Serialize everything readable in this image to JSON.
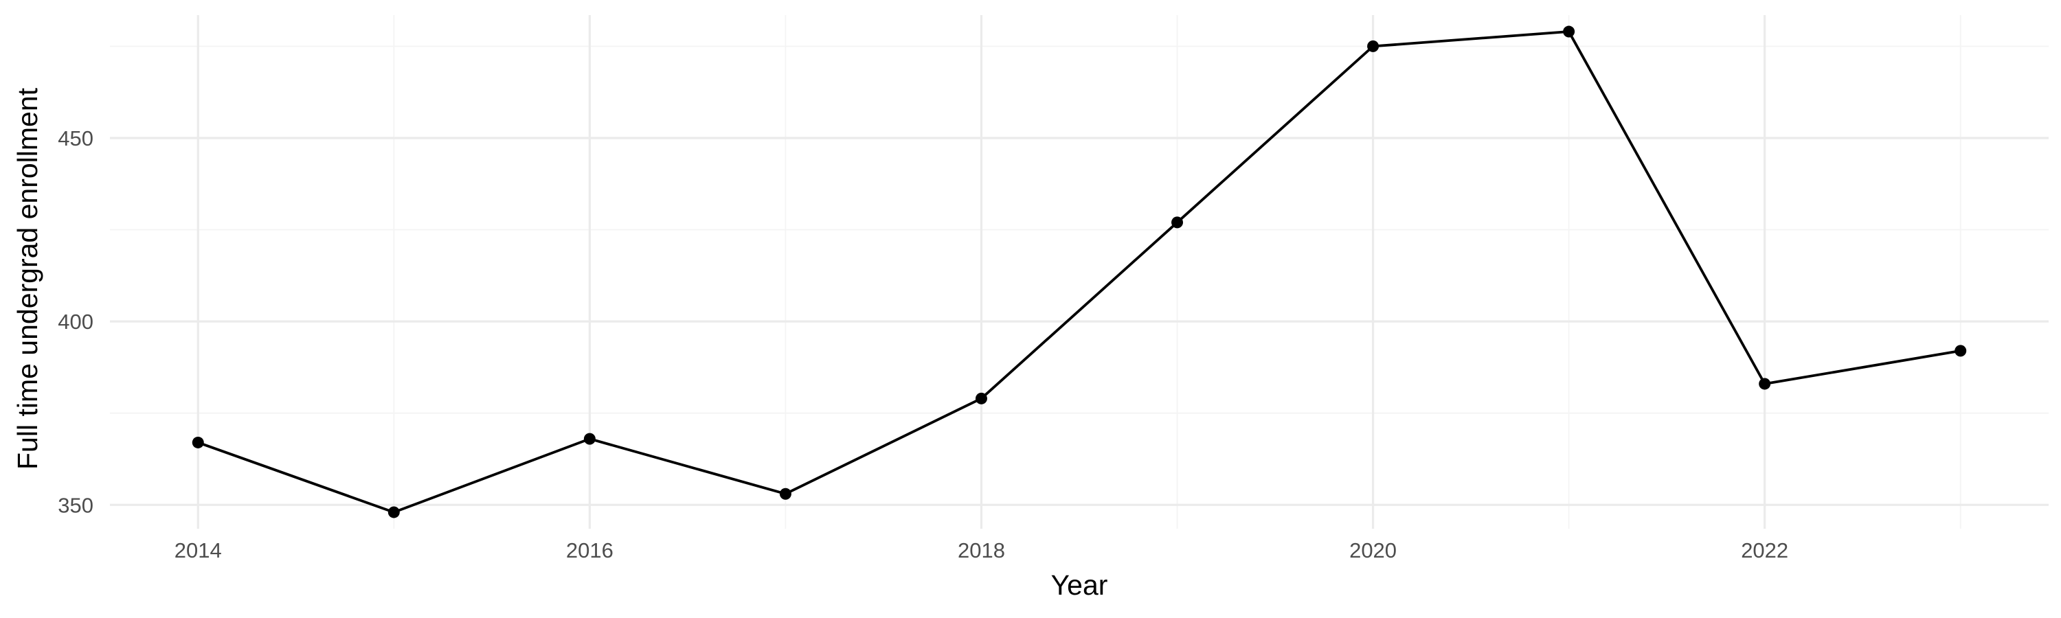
{
  "chart_data": {
    "type": "line",
    "xlabel": "Year",
    "ylabel": "Full time undergrad enrollment",
    "x": [
      2014,
      2015,
      2016,
      2017,
      2018,
      2019,
      2020,
      2021,
      2022,
      2023
    ],
    "series": [
      {
        "values": [
          367,
          348,
          368,
          353,
          379,
          427,
          475,
          479,
          383,
          392
        ]
      }
    ],
    "x_ticks": [
      2014,
      2016,
      2018,
      2020,
      2022
    ],
    "x_tick_labels": [
      "2014",
      "2016",
      "2018",
      "2020",
      "2022"
    ],
    "y_ticks": [
      350,
      400,
      450
    ],
    "y_tick_labels": [
      "350",
      "400",
      "450"
    ],
    "xlim": [
      2013.55,
      2023.45
    ],
    "ylim": [
      343.5,
      483.5
    ],
    "grid": true,
    "legend": "none",
    "colors": {
      "line": "#000000",
      "point": "#000000",
      "grid": "#ebebeb",
      "tick_text": "#4d4d4d"
    }
  }
}
